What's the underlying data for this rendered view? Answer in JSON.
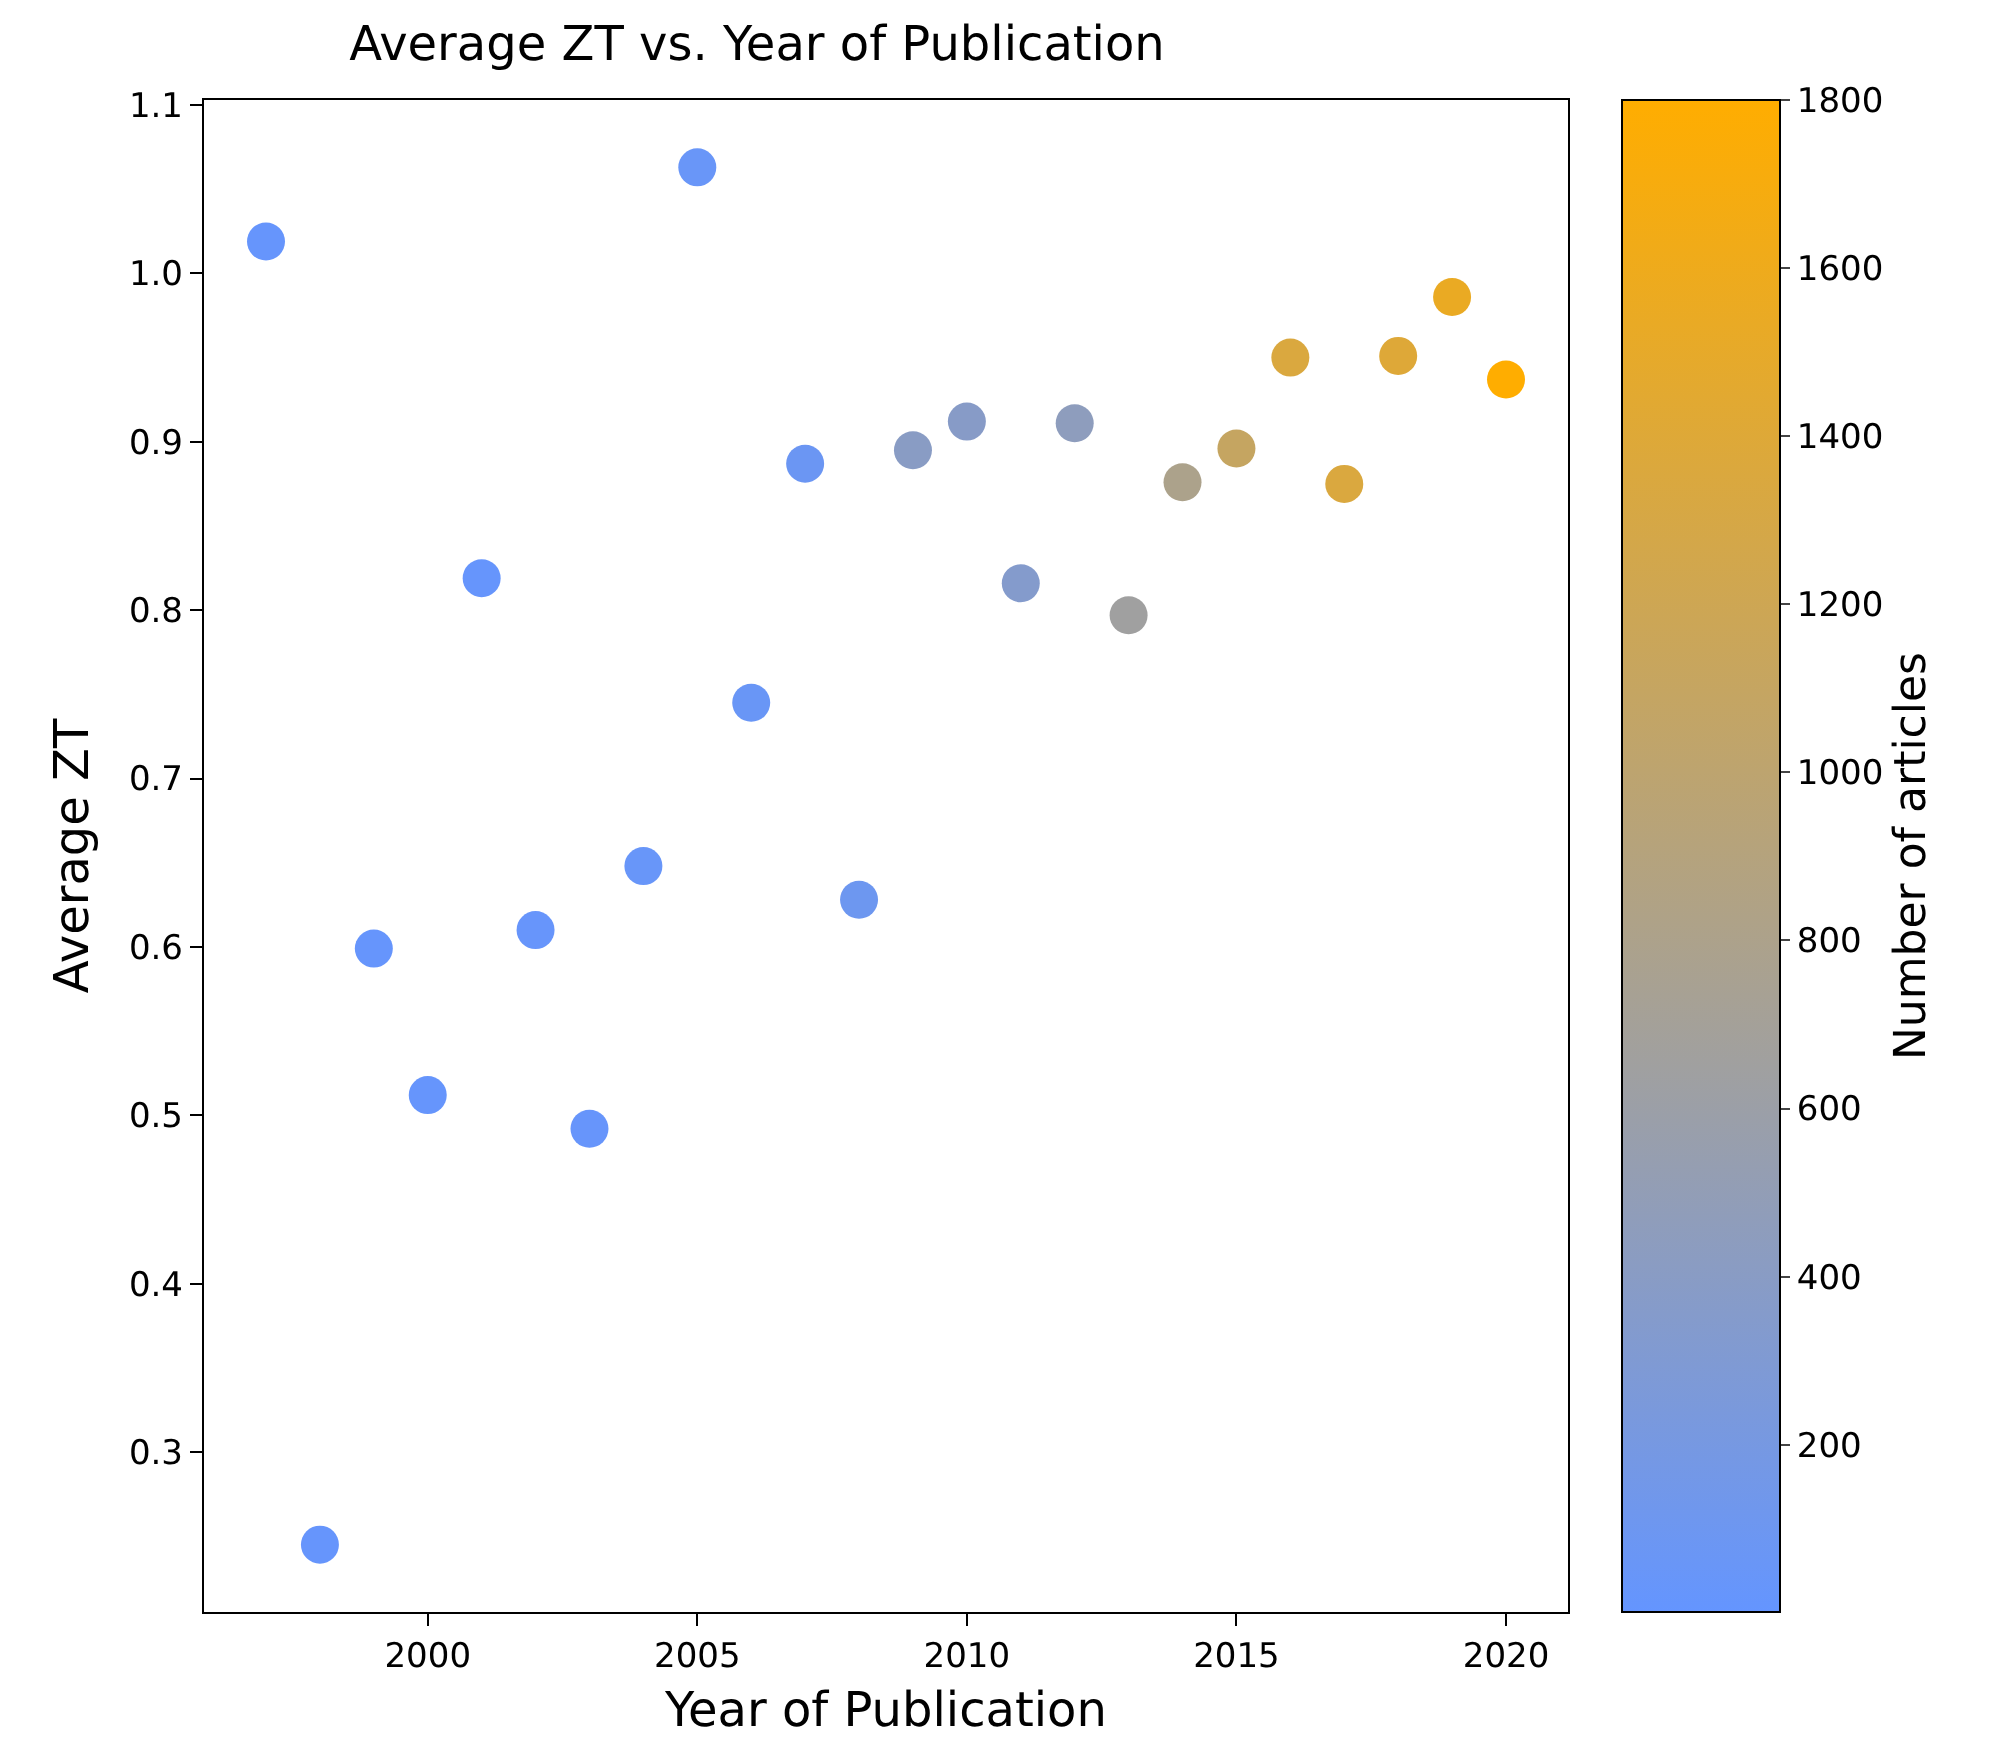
{
  "chart_data": {
    "type": "scatter",
    "title": "Average ZT vs. Year of Publication",
    "xlabel": "Year of Publication",
    "ylabel": "Average ZT",
    "clabel": "Number of articles",
    "x": [
      1997,
      1998,
      1999,
      2000,
      2001,
      2002,
      2003,
      2004,
      2005,
      2006,
      2007,
      2008,
      2009,
      2010,
      2011,
      2012,
      2013,
      2014,
      2015,
      2016,
      2017,
      2018,
      2019,
      2020
    ],
    "values": [
      1.019,
      0.245,
      0.599,
      0.512,
      0.819,
      0.61,
      0.492,
      0.648,
      1.063,
      0.745,
      0.887,
      0.628,
      0.895,
      0.912,
      0.816,
      0.911,
      0.797,
      0.876,
      0.896,
      0.95,
      0.875,
      0.951,
      0.986,
      0.937
    ],
    "cvalues": [
      20,
      20,
      20,
      20,
      20,
      30,
      30,
      40,
      50,
      60,
      80,
      100,
      400,
      380,
      350,
      450,
      650,
      800,
      1100,
      1350,
      1350,
      1400,
      1550,
      1800
    ],
    "clim": [
      1,
      1800
    ],
    "cticks": [
      200,
      400,
      600,
      800,
      1000,
      1200,
      1400,
      1600,
      1800
    ],
    "xlim": [
      1995.85,
      2021.15
    ],
    "xticks": [
      2000,
      2005,
      2010,
      2015,
      2020
    ],
    "ylim": [
      0.205,
      1.103
    ],
    "yticks": [
      0.3,
      0.4,
      0.5,
      0.6,
      0.7,
      0.8,
      0.9,
      {
        "value": 1,
        "label": "1.0"
      },
      1.1
    ],
    "grid": false,
    "marker": "circle"
  }
}
